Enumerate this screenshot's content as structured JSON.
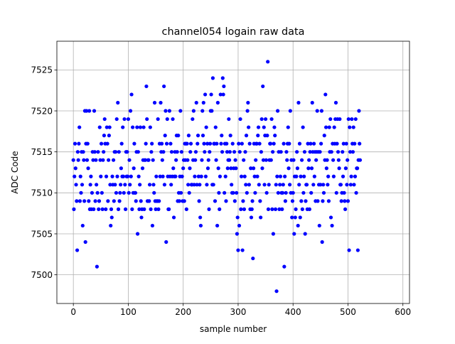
{
  "chart_data": {
    "type": "scatter",
    "title": "channel054 logain raw data",
    "xlabel": "sample number",
    "ylabel": "ADC Code",
    "xlim": [
      -30,
      612
    ],
    "ylim": [
      7496.5,
      7528.5
    ],
    "xticks": [
      0,
      100,
      200,
      300,
      400,
      500,
      600
    ],
    "yticks": [
      7500,
      7505,
      7510,
      7515,
      7520,
      7525
    ],
    "xtick_labels": [
      "0",
      "100",
      "200",
      "300",
      "400",
      "500",
      "600"
    ],
    "ytick_labels": [
      "7500",
      "7505",
      "7510",
      "7515",
      "7520",
      "7525"
    ],
    "grid": true,
    "marker_color": "#0000ff",
    "series": [
      {
        "values": [
          7514,
          7508,
          7512,
          7516,
          7513,
          7511,
          7509,
          7503,
          7515,
          7514,
          7516,
          7518,
          7509,
          7512,
          7510,
          7515,
          7511,
          7506,
          7515,
          7514,
          7509,
          7520,
          7504,
          7516,
          7520,
          7514,
          7516,
          7513,
          7509,
          7520,
          7508,
          7511,
          7512,
          7508,
          7510,
          7515,
          7514,
          7508,
          7520,
          7515,
          7509,
          7514,
          7511,
          7501,
          7510,
          7515,
          7508,
          7509,
          7518,
          7514,
          7512,
          7516,
          7510,
          7508,
          7514,
          7515,
          7517,
          7519,
          7516,
          7508,
          7512,
          7518,
          7516,
          7509,
          7514,
          7517,
          7518,
          7511,
          7506,
          7508,
          7507,
          7512,
          7511,
          7514,
          7509,
          7515,
          7511,
          7515,
          7510,
          7519,
          7512,
          7521,
          7508,
          7515,
          7509,
          7510,
          7511,
          7513,
          7516,
          7512,
          7518,
          7512,
          7510,
          7519,
          7511,
          7508,
          7515,
          7512,
          7515,
          7512,
          7519,
          7510,
          7514,
          7511,
          7520,
          7512,
          7522,
          7508,
          7518,
          7510,
          7513,
          7516,
          7510,
          7510,
          7509,
          7515,
          7518,
          7505,
          7515,
          7512,
          7508,
          7511,
          7518,
          7509,
          7507,
          7508,
          7513,
          7514,
          7518,
          7508,
          7514,
          7514,
          7516,
          7523,
          7519,
          7509,
          7514,
          7514,
          7509,
          7511,
          7518,
          7508,
          7515,
          7516,
          7506,
          7514,
          7511,
          7510,
          7521,
          7509,
          7508,
          7512,
          7509,
          7509,
          7519,
          7508,
          7509,
          7516,
          7512,
          7521,
          7515,
          7516,
          7514,
          7512,
          7515,
          7523,
          7511,
          7517,
          7520,
          7504,
          7516,
          7519,
          7512,
          7508,
          7508,
          7520,
          7512,
          7516,
          7511,
          7515,
          7512,
          7519,
          7513,
          7507,
          7512,
          7515,
          7512,
          7514,
          7517,
          7515,
          7509,
          7517,
          7510,
          7509,
          7512,
          7520,
          7510,
          7515,
          7512,
          7509,
          7513,
          7514,
          7509,
          7516,
          7514,
          7516,
          7508,
          7516,
          7514,
          7511,
          7517,
          7510,
          7513,
          7515,
          7516,
          7511,
          7511,
          7519,
          7514,
          7520,
          7511,
          7512,
          7514,
          7515,
          7521,
          7511,
          7516,
          7517,
          7512,
          7509,
          7511,
          7507,
          7506,
          7512,
          7514,
          7520,
          7517,
          7521,
          7516,
          7515,
          7522,
          7512,
          7518,
          7511,
          7516,
          7513,
          7514,
          7508,
          7515,
          7516,
          7520,
          7522,
          7520,
          7511,
          7524,
          7511,
          7516,
          7516,
          7509,
          7518,
          7514,
          7516,
          7506,
          7521,
          7513,
          7510,
          7508,
          7512,
          7522,
          7516,
          7517,
          7515,
          7524,
          7522,
          7523,
          7510,
          7516,
          7512,
          7509,
          7516,
          7515,
          7513,
          7514,
          7519,
          7514,
          7515,
          7517,
          7513,
          7511,
          7510,
          7516,
          7510,
          7513,
          7515,
          7509,
          7514,
          7513,
          7510,
          7505,
          7507,
          7503,
          7516,
          7506,
          7515,
          7519,
          7508,
          7512,
          7516,
          7503,
          7509,
          7514,
          7508,
          7512,
          7515,
          7511,
          7517,
          7510,
          7520,
          7521,
          7518,
          7511,
          7516,
          7508,
          7513,
          7507,
          7508,
          7509,
          7502,
          7513,
          7516,
          7512,
          7510,
          7514,
          7516,
          7516,
          7512,
          7517,
          7518,
          7511,
          7516,
          7509,
          7507,
          7515,
          7519,
          7513,
          7523,
          7514,
          7518,
          7511,
          7517,
          7519,
          7514,
          7510,
          7517,
          7526,
          7508,
          7511,
          7514,
          7516,
          7516,
          7514,
          7519,
          7508,
          7515,
          7505,
          7516,
          7518,
          7517,
          7508,
          7511,
          7498,
          7512,
          7520,
          7510,
          7515,
          7508,
          7511,
          7512,
          7515,
          7510,
          7508,
          7510,
          7511,
          7516,
          7501,
          7512,
          7509,
          7510,
          7515,
          7514,
          7516,
          7518,
          7513,
          7516,
          7511,
          7520,
          7510,
          7514,
          7507,
          7509,
          7510,
          7514,
          7505,
          7512,
          7507,
          7508,
          7512,
          7515,
          7513,
          7506,
          7521,
          7511,
          7516,
          7507,
          7512,
          7509,
          7514,
          7508,
          7518,
          7510,
          7512,
          7515,
          7505,
          7509,
          7511,
          7511,
          7508,
          7516,
          7513,
          7514,
          7508,
          7515,
          7516,
          7510,
          7513,
          7521,
          7515,
          7511,
          7516,
          7512,
          7515,
          7509,
          7514,
          7515,
          7520,
          7509,
          7515,
          7511,
          7506,
          7515,
          7511,
          7516,
          7520,
          7504,
          7509,
          7511,
          7510,
          7517,
          7514,
          7522,
          7518,
          7513,
          7514,
          7511,
          7512,
          7509,
          7518,
          7515,
          7519,
          7507,
          7515,
          7506,
          7516,
          7514,
          7512,
          7518,
          7516,
          7519,
          7521,
          7510,
          7516,
          7519,
          7515,
          7514,
          7513,
          7519,
          7511,
          7511,
          7509,
          7510,
          7515,
          7512,
          7516,
          7510,
          7509,
          7508,
          7513,
          7516,
          7511,
          7514,
          7509,
          7519,
          7503,
          7518,
          7515,
          7511,
          7512,
          7519,
          7516,
          7515,
          7518,
          7511,
          7516,
          7512,
          7519,
          7510,
          7513,
          7513,
          7503,
          7514,
          7520,
          7516,
          7514
        ]
      }
    ]
  }
}
